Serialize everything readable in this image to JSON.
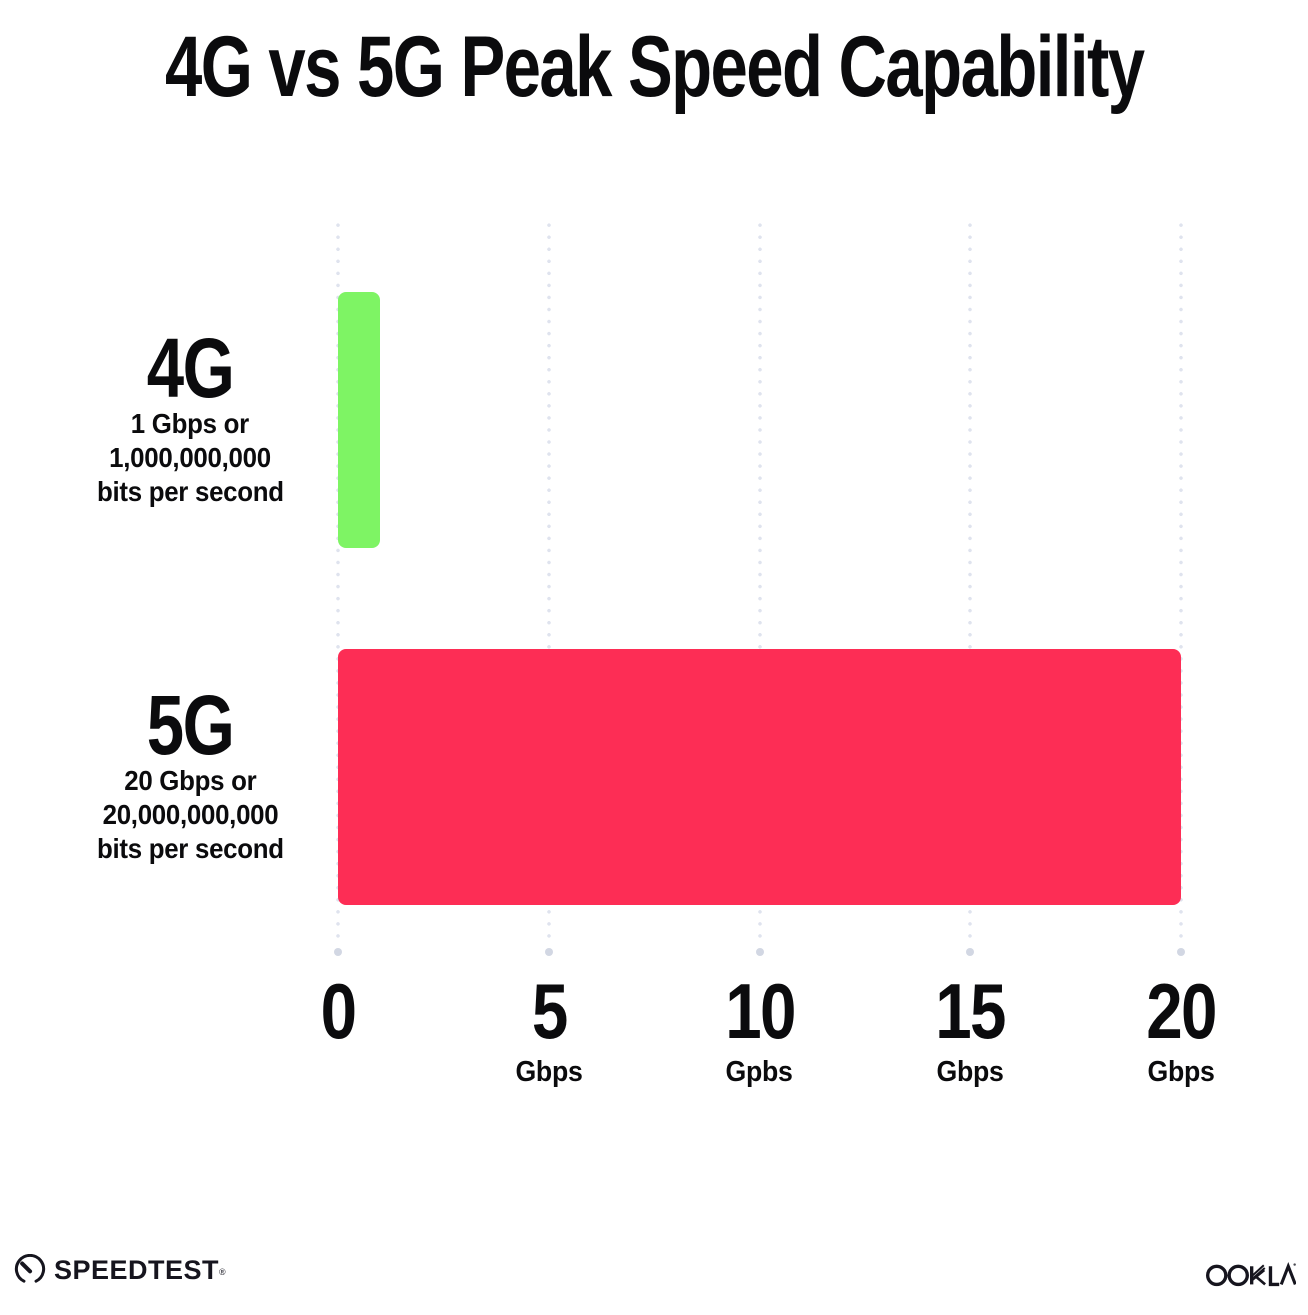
{
  "title": "4G vs 5G Peak Speed Capability",
  "chart_data": {
    "type": "bar",
    "orientation": "horizontal",
    "title": "4G vs 5G Peak Speed Capability",
    "categories": [
      "4G",
      "5G"
    ],
    "values": [
      1,
      20
    ],
    "bar_colors": [
      "#7EF464",
      "#FD2D55"
    ],
    "row_sublabels": [
      [
        "1 Gbps or",
        "1,000,000,000",
        "bits per second"
      ],
      [
        "20 Gbps or",
        "20,000,000,000",
        "bits per second"
      ]
    ],
    "x_ticks": [
      {
        "value": 0,
        "label": "0",
        "unit": ""
      },
      {
        "value": 5,
        "label": "5",
        "unit": "Gbps"
      },
      {
        "value": 10,
        "label": "10",
        "unit": "Gpbs"
      },
      {
        "value": 15,
        "label": "15",
        "unit": "Gbps"
      },
      {
        "value": 20,
        "label": "20",
        "unit": "Gbps"
      }
    ],
    "xlim": [
      0,
      20
    ],
    "grid": "dotted-vertical",
    "legend": "none"
  },
  "footer": {
    "speedtest_label": "SPEEDTEST",
    "speedtest_trademark": "®",
    "ookla_label": "OOKLA",
    "ookla_trademark": "®"
  },
  "colors": {
    "bar_4g": "#7EF464",
    "bar_5g": "#FD2D55",
    "grid_dot": "#dfe3ee",
    "grid_end_dot": "#d2d7e3",
    "text": "#0b0b0d",
    "logo_ink": "#16151e",
    "background": "#ffffff"
  }
}
